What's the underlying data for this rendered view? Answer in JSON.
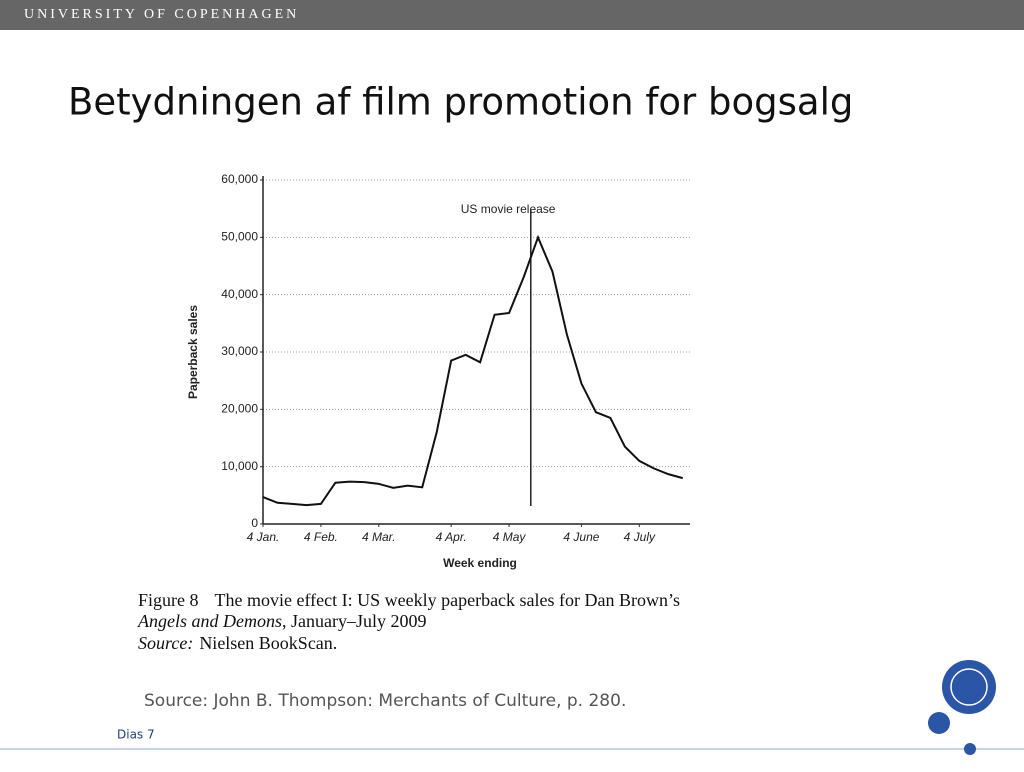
{
  "header": {
    "institution": "UNIVERSITY OF COPENHAGEN"
  },
  "slide": {
    "title": "Betydningen af film promotion for bogsalg",
    "source": "Source: John B. Thompson: Merchants of Culture, p. 280.",
    "slide_number": "Dias 7"
  },
  "chart_data": {
    "type": "line",
    "ylabel": "Paperback sales",
    "xlabel": "Week ending",
    "annotation": "US movie release",
    "categories": [
      "4 Jan.",
      null,
      null,
      null,
      "4 Feb.",
      null,
      null,
      null,
      "4 Mar.",
      null,
      null,
      null,
      null,
      "4 Apr.",
      null,
      null,
      null,
      "4 May",
      null,
      null,
      null,
      null,
      "4 June",
      null,
      null,
      null,
      "4 July",
      null,
      null,
      null
    ],
    "series": [
      {
        "name": "Paperback sales",
        "color": "#111111",
        "values": [
          4700,
          3700,
          3500,
          3300,
          3500,
          7200,
          7400,
          7300,
          7000,
          6300,
          6700,
          6400,
          16000,
          28500,
          29500,
          28200,
          36500,
          36800,
          43000,
          50000,
          44000,
          33000,
          24500,
          19500,
          18500,
          13500,
          11000,
          9700,
          8700,
          8000
        ]
      }
    ],
    "ylim": [
      0,
      60000
    ],
    "yticks": [
      0,
      {
        "value": 10000,
        "label": "10,000"
      },
      {
        "value": 20000,
        "label": "20,000"
      },
      {
        "value": 30000,
        "label": "30,000"
      },
      {
        "value": 40000,
        "label": "40,000"
      },
      {
        "value": 50000,
        "label": "50,000"
      },
      {
        "value": 60000,
        "label": "60,000"
      }
    ],
    "grid": true
  },
  "caption": {
    "figure_label": "Figure 8",
    "line1": "The movie effect I: US weekly paperback sales for Dan Brown’s",
    "book_title": "Angels and Demons",
    "line2": ", January–July 2009",
    "source_label": "Source:",
    "source_text": "Nielsen BookScan."
  }
}
